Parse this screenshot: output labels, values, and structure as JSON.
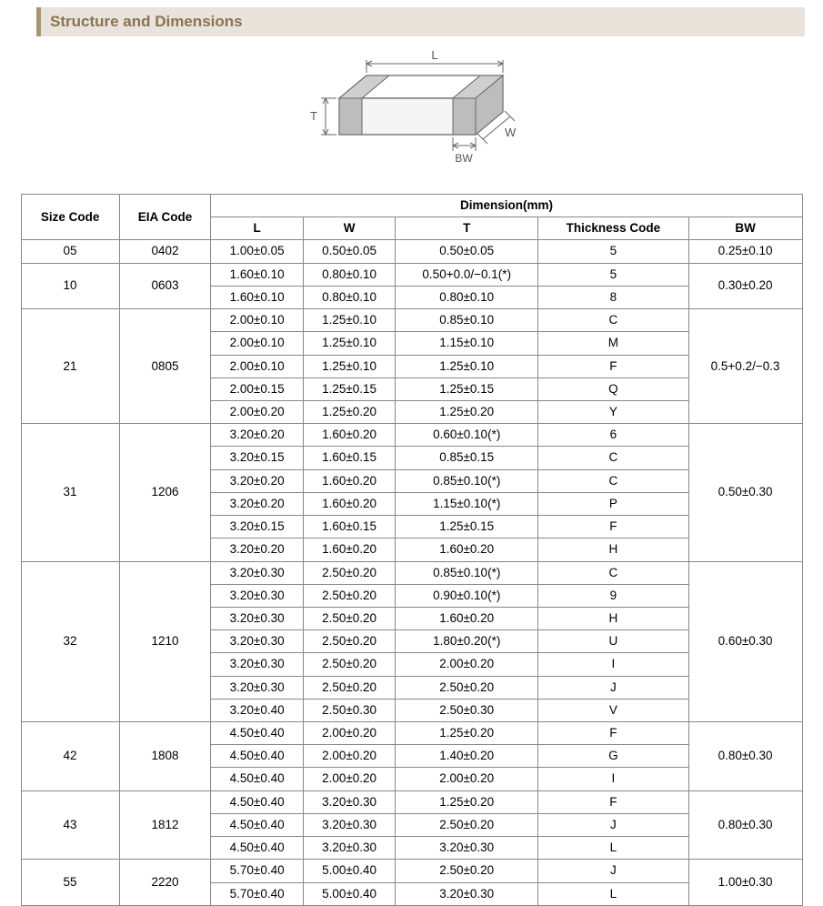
{
  "title": "Structure and Dimensions",
  "diagram": {
    "labels": {
      "L": "L",
      "W": "W",
      "T": "T",
      "BW": "BW"
    },
    "stroke": "#666666",
    "fill_top": "#ffffff",
    "fill_side": "#e6e6e6",
    "fill_end": "#cfcfcf",
    "fill_terminal": "#bdbdbd",
    "label_color": "#555555"
  },
  "table": {
    "header": {
      "size_code": "Size Code",
      "eia_code": "EIA Code",
      "dimension": "Dimension(mm)",
      "L": "L",
      "W": "W",
      "T": "T",
      "thickness_code": "Thickness Code",
      "BW": "BW"
    },
    "groups": [
      {
        "size_code": "05",
        "eia_code": "0402",
        "bw": "0.25±0.10",
        "rows": [
          {
            "L": "1.00±0.05",
            "W": "0.50±0.05",
            "T": "0.50±0.05",
            "tc": "5"
          }
        ]
      },
      {
        "size_code": "10",
        "eia_code": "0603",
        "bw": "0.30±0.20",
        "rows": [
          {
            "L": "1.60±0.10",
            "W": "0.80±0.10",
            "T": "0.50+0.0/−0.1(*)",
            "tc": "5"
          },
          {
            "L": "1.60±0.10",
            "W": "0.80±0.10",
            "T": "0.80±0.10",
            "tc": "8"
          }
        ]
      },
      {
        "size_code": "21",
        "eia_code": "0805",
        "bw": "0.5+0.2/−0.3",
        "rows": [
          {
            "L": "2.00±0.10",
            "W": "1.25±0.10",
            "T": "0.85±0.10",
            "tc": "C"
          },
          {
            "L": "2.00±0.10",
            "W": "1.25±0.10",
            "T": "1.15±0.10",
            "tc": "M"
          },
          {
            "L": "2.00±0.10",
            "W": "1.25±0.10",
            "T": "1.25±0.10",
            "tc": "F"
          },
          {
            "L": "2.00±0.15",
            "W": "1.25±0.15",
            "T": "1.25±0.15",
            "tc": "Q"
          },
          {
            "L": "2.00±0.20",
            "W": "1.25±0.20",
            "T": "1.25±0.20",
            "tc": "Y"
          }
        ]
      },
      {
        "size_code": "31",
        "eia_code": "1206",
        "bw": "0.50±0.30",
        "rows": [
          {
            "L": "3.20±0.20",
            "W": "1.60±0.20",
            "T": "0.60±0.10(*)",
            "tc": "6"
          },
          {
            "L": "3.20±0.15",
            "W": "1.60±0.15",
            "T": "0.85±0.15",
            "tc": "C"
          },
          {
            "L": "3.20±0.20",
            "W": "1.60±0.20",
            "T": "0.85±0.10(*)",
            "tc": "C"
          },
          {
            "L": "3.20±0.20",
            "W": "1.60±0.20",
            "T": "1.15±0.10(*)",
            "tc": "P"
          },
          {
            "L": "3.20±0.15",
            "W": "1.60±0.15",
            "T": "1.25±0.15",
            "tc": "F"
          },
          {
            "L": "3.20±0.20",
            "W": "1.60±0.20",
            "T": "1.60±0.20",
            "tc": "H"
          }
        ]
      },
      {
        "size_code": "32",
        "eia_code": "1210",
        "bw": "0.60±0.30",
        "rows": [
          {
            "L": "3.20±0.30",
            "W": "2.50±0.20",
            "T": "0.85±0.10(*)",
            "tc": "C"
          },
          {
            "L": "3.20±0.30",
            "W": "2.50±0.20",
            "T": "0.90±0.10(*)",
            "tc": "9"
          },
          {
            "L": "3.20±0.30",
            "W": "2.50±0.20",
            "T": "1.60±0.20",
            "tc": "H"
          },
          {
            "L": "3.20±0.30",
            "W": "2.50±0.20",
            "T": "1.80±0.20(*)",
            "tc": "U"
          },
          {
            "L": "3.20±0.30",
            "W": "2.50±0.20",
            "T": "2.00±0.20",
            "tc": "I"
          },
          {
            "L": "3.20±0.30",
            "W": "2.50±0.20",
            "T": "2.50±0.20",
            "tc": "J"
          },
          {
            "L": "3.20±0.40",
            "W": "2.50±0.30",
            "T": "2.50±0.30",
            "tc": "V"
          }
        ]
      },
      {
        "size_code": "42",
        "eia_code": "1808",
        "bw": "0.80±0.30",
        "rows": [
          {
            "L": "4.50±0.40",
            "W": "2.00±0.20",
            "T": "1.25±0.20",
            "tc": "F"
          },
          {
            "L": "4.50±0.40",
            "W": "2.00±0.20",
            "T": "1.40±0.20",
            "tc": "G"
          },
          {
            "L": "4.50±0.40",
            "W": "2.00±0.20",
            "T": "2.00±0.20",
            "tc": "I"
          }
        ]
      },
      {
        "size_code": "43",
        "eia_code": "1812",
        "bw": "0.80±0.30",
        "rows": [
          {
            "L": "4.50±0.40",
            "W": "3.20±0.30",
            "T": "1.25±0.20",
            "tc": "F"
          },
          {
            "L": "4.50±0.40",
            "W": "3.20±0.30",
            "T": "2.50±0.20",
            "tc": "J"
          },
          {
            "L": "4.50±0.40",
            "W": "3.20±0.30",
            "T": "3.20±0.30",
            "tc": "L"
          }
        ]
      },
      {
        "size_code": "55",
        "eia_code": "2220",
        "bw": "1.00±0.30",
        "rows": [
          {
            "L": "5.70±0.40",
            "W": "5.00±0.40",
            "T": "2.50±0.20",
            "tc": "J"
          },
          {
            "L": "5.70±0.40",
            "W": "5.00±0.40",
            "T": "3.20±0.30",
            "tc": "L"
          }
        ]
      }
    ]
  },
  "style": {
    "header_bg": "#e8e3db",
    "header_border": "#a89578",
    "header_text": "#8a7352",
    "table_border": "#888888",
    "font_size_header": 17,
    "font_size_table": 13.5
  }
}
